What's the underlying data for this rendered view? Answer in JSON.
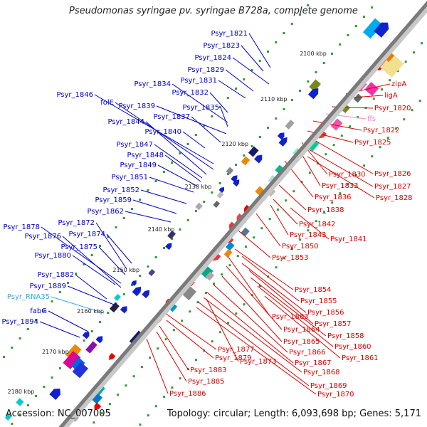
{
  "header": {
    "title": "Pseudomonas syringae pv. syringae B728a, complete genome"
  },
  "footer": {
    "accession": "Accession: NC_007005",
    "topology": "Topology: circular; Length: 6,093,698 bp; Genes: 5,171"
  },
  "colors": {
    "left_label": "#0000cc",
    "right_label": "#dd0000",
    "rna_label": "#33aadd",
    "ffs_label": "#ee88cc",
    "backbone": "#777777",
    "tick": "#339933"
  },
  "kbp_ticks": [
    "2100 kbp",
    "2110 kbp",
    "2120 kbp",
    "2130 kbp",
    "2140 kbp",
    "2150 kbp",
    "2160 kbp",
    "2170 kbp",
    "2180 kbp"
  ],
  "left_labels": [
    "Psyr_1821",
    "Psyr_1823",
    "Psyr_1824",
    "Psyr_1829",
    "Psyr_1831",
    "Psyr_1834",
    "Psyr_1832",
    "Psyr_1846",
    "folE",
    "Psyr_1835",
    "Psyr_1839",
    "Psyr_1837",
    "Psyr_1844",
    "Psyr_1840",
    "Psyr_1847",
    "Psyr_1848",
    "Psyr_1849",
    "Psyr_1851",
    "Psyr_1852",
    "Psyr_1859",
    "Psyr_1862",
    "Psyr_1878",
    "Psyr_1872",
    "Psyr_1876",
    "Psyr_1874",
    "Psyr_1875",
    "Psyr_1880",
    "Psyr_1882",
    "Psyr_1889",
    "Psyr_RNA35",
    "fabG",
    "Psyr_1894"
  ],
  "right_labels": [
    "zipA",
    "ligA",
    "Psyr_1820",
    "ffs",
    "Psyr_1822",
    "Psyr_1825",
    "Psyr_1826",
    "Psyr_1830",
    "Psyr_1827",
    "Psyr_1833",
    "Psyr_1828",
    "Psyr_1836",
    "Psyr_1838",
    "Psyr_1842",
    "Psyr_1843",
    "Psyr_1841",
    "Psyr_1850",
    "Psyr_1853",
    "Psyr_1854",
    "Psyr_1855",
    "Psyr_1856",
    "Psyr_1857",
    "Psyr_1863",
    "Psyr_1858",
    "Psyr_1864",
    "Psyr_1860",
    "Psyr_1865",
    "Psyr_1866",
    "Psyr_1861",
    "Psyr_1877",
    "Psyr_1879",
    "Psyr_1873",
    "Psyr_1867",
    "Psyr_1883",
    "Psyr_1868",
    "Psyr_1885",
    "Psyr_1869",
    "Psyr_1886",
    "Psyr_1870"
  ]
}
